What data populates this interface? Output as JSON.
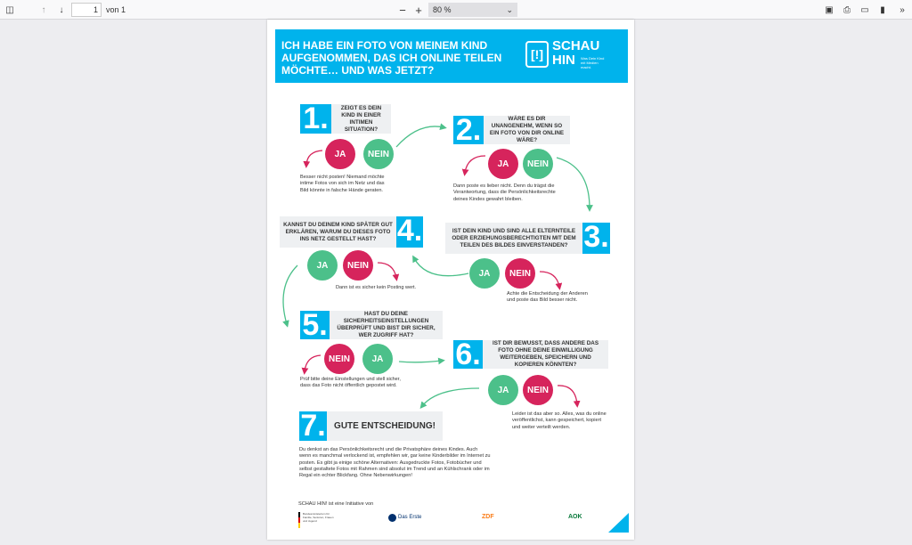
{
  "toolbar": {
    "page_current": "1",
    "page_total_label": "von 1",
    "zoom": "80 %",
    "icons": [
      "sidebar-toggle-icon",
      "arrow-up-icon",
      "arrow-down-icon",
      "zoom-out-icon",
      "zoom-in-icon",
      "presentation-icon",
      "print-icon",
      "open-file-icon",
      "bookmark-icon",
      "more-tools-icon"
    ]
  },
  "colors": {
    "blue": "#00b3ec",
    "pink": "#d6245c",
    "green": "#4cc08a"
  },
  "poster": {
    "title": "ICH HABE EIN FOTO VON MEINEM KIND AUFGENOMMEN, DAS ICH ONLINE TEILEN MÖCHTE… UND WAS JETZT?",
    "logo": {
      "line1": "SCHAU",
      "line2": "HIN",
      "tagline": "Was Dein Kind mit Medien macht.",
      "mark": "[!]"
    },
    "steps": [
      {
        "num": "1.",
        "question": "ZEIGT ES DEIN KIND IN EINER INTIMEN SITUATION?",
        "a": "JA",
        "b": "NEIN",
        "note": "Besser nicht posten! Niemand möchte intime Fotos von sich im Netz und das Bild könnte in falsche Hände geraten."
      },
      {
        "num": "2.",
        "question": "WÄRE ES DIR UNANGENEHM, WENN SO EIN FOTO VON DIR ONLINE WÄRE?",
        "a": "JA",
        "b": "NEIN",
        "note": "Dann poste es lieber nicht. Denn du trägst die Verantwortung, dass die Persönlichkeitsrechte deines Kindes gewahrt bleiben."
      },
      {
        "num": "3.",
        "question": "IST DEIN KIND UND SIND ALLE ELTERNTEILE ODER ERZIEHUNGSBERECHTIGTEN MIT DEM TEILEN DES BILDES EINVERSTANDEN?",
        "a": "JA",
        "b": "NEIN",
        "note": "Achte die Entscheidung der Anderen und poste das Bild besser nicht."
      },
      {
        "num": "4.",
        "question": "KANNST DU DEINEM KIND SPÄTER GUT ERKLÄREN, WARUM DU DIESES FOTO INS NETZ GESTELLT HAST?",
        "a": "JA",
        "b": "NEIN",
        "note": "Dann ist es sicher kein Posting wert."
      },
      {
        "num": "5.",
        "question": "HAST DU DEINE SICHERHEITSEINSTELLUNGEN ÜBERPRÜFT UND BIST DIR SICHER, WER ZUGRIFF HAT?",
        "a": "NEIN",
        "b": "JA",
        "note": "Prüf bitte deine Einstellungen und stell sicher, dass das Foto nicht öffentlich gepostet wird."
      },
      {
        "num": "6.",
        "question": "IST DIR BEWUSST, DASS ANDERE DAS FOTO OHNE DEINE EINWILLIGUNG WEITERGEBEN, SPEICHERN UND KOPIEREN KÖNNTEN?",
        "a": "JA",
        "b": "NEIN",
        "note": "Leider ist das aber so. Alles, was du online veröffentlichst, kann gespeichert, kopiert und weiter verteilt werden."
      },
      {
        "num": "7.",
        "question": "GUTE ENTSCHEIDUNG!",
        "note": "Du denkst an das Persönlichkeitsrecht und die Privatsphäre deines Kindes. Auch wenn es manchmal verlockend ist, empfehlen wir, gar keine Kinderbilder im Internet zu posten. Es gibt ja einige schöne Alternativen: Ausgedruckte Fotos, Fotobücher und selbst gestaltete Fotos mit Rahmen sind absolut im Trend und an Kühlschrank oder im Regal ein echter Blickfang. Ohne Nebenwirkungen!"
      }
    ],
    "footer": {
      "initiative": "SCHAU HIN! ist eine Initiative von",
      "partners": [
        "Bundesministerium für Familie, Senioren, Frauen und Jugend",
        "Das Erste",
        "ZDF",
        "AOK"
      ]
    }
  }
}
